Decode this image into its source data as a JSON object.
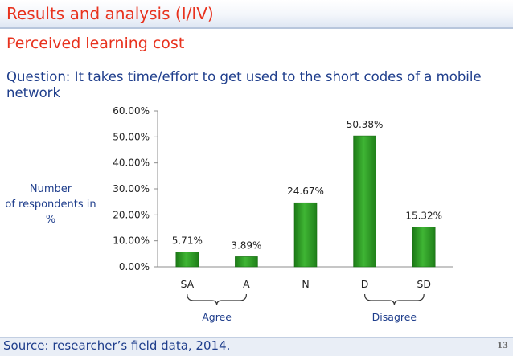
{
  "slide": {
    "title": "Results and analysis (I/IV)",
    "subtitle": "Perceived learning cost",
    "question": "Question: It takes time/effort to get used to the short codes of a mobile network",
    "source": "Source: researcher’s field data, 2014.",
    "page_number": "13"
  },
  "chart_data": {
    "type": "bar",
    "categories": [
      "SA",
      "A",
      "N",
      "D",
      "SD"
    ],
    "values": [
      5.71,
      3.89,
      24.67,
      50.38,
      15.32
    ],
    "value_labels": [
      "5.71%",
      "3.89%",
      "24.67%",
      "50.38%",
      "15.32%"
    ],
    "ylabel": "Number of respondents in %",
    "ylabel_lines": [
      "Number",
      "of respondents in",
      "%"
    ],
    "ylim": [
      0,
      60
    ],
    "yticks": [
      0,
      10,
      20,
      30,
      40,
      50,
      60
    ],
    "ytick_labels": [
      "0.00%",
      "10.00%",
      "20.00%",
      "30.00%",
      "40.00%",
      "50.00%",
      "60.00%"
    ],
    "groups": [
      {
        "label": "Agree",
        "from": "SA",
        "to": "A"
      },
      {
        "label": "Disagree",
        "from": "D",
        "to": "SD"
      }
    ],
    "bar_color": "#2e9a24",
    "grid": false
  }
}
